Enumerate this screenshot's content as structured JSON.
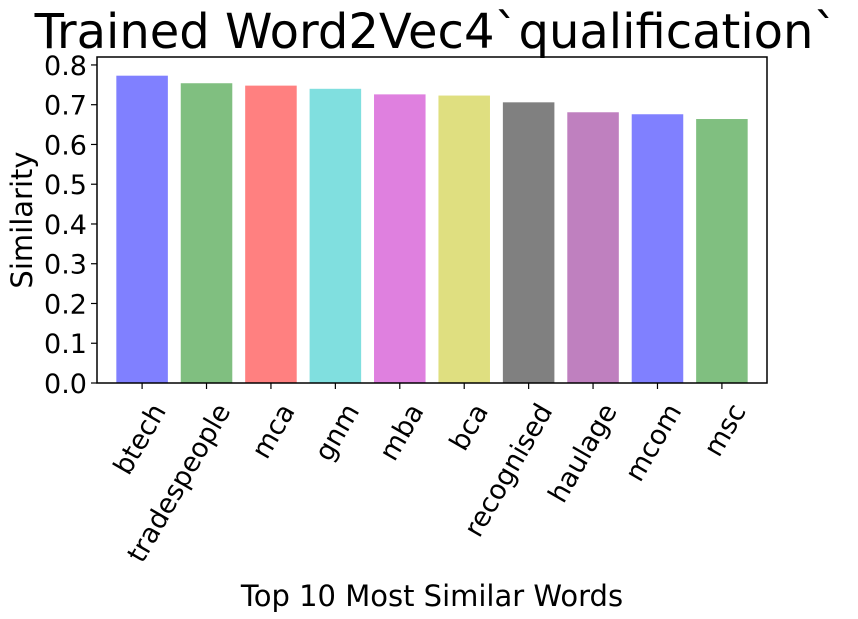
{
  "chart_data": {
    "type": "bar",
    "title": "Trained Word2Vec4`qualification`",
    "xlabel": "Top 10 Most Similar Words",
    "ylabel": "Similarity",
    "categories": [
      "btech",
      "tradespeople",
      "mca",
      "gnm",
      "mba",
      "bca",
      "recognised",
      "haulage",
      "mcom",
      "msc"
    ],
    "values": [
      0.773,
      0.754,
      0.748,
      0.74,
      0.726,
      0.723,
      0.706,
      0.681,
      0.676,
      0.664
    ],
    "colors": [
      "#8080ff",
      "#80bf80",
      "#ff8080",
      "#80dfdf",
      "#df80df",
      "#dfdf80",
      "#808080",
      "#bf80bf",
      "#8080ff",
      "#80bf80"
    ],
    "ylim": [
      0,
      0.82
    ],
    "yticks": [
      "0.0",
      "0.1",
      "0.2",
      "0.3",
      "0.4",
      "0.5",
      "0.6",
      "0.7",
      "0.8"
    ],
    "grid": false,
    "legend": "none"
  }
}
